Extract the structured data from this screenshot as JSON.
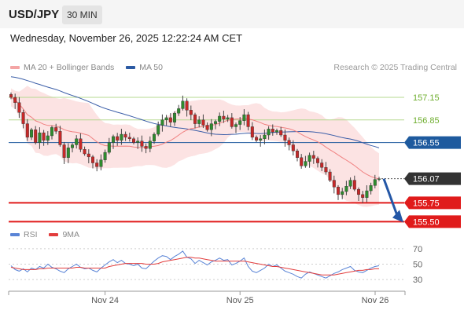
{
  "header": {
    "symbol": "USD/JPY",
    "interval": "30 MIN"
  },
  "datetime": "Wednesday, November 26, 2025 12:22:24 AM CET",
  "legend": {
    "ma20_label": "MA 20 + Bollinger Bands",
    "ma50_label": "MA 50"
  },
  "copyright": "Research © 2025 Trading Central",
  "rsi_legend": {
    "rsi_label": "RSI",
    "ma_label": "9MA"
  },
  "colors": {
    "candle_up": "#2e8b2e",
    "candle_down": "#c62828",
    "bollinger": "#fbdcdc",
    "ma20": "#f08080",
    "ma50": "#3b5ea8",
    "resistance": "#b5d88f",
    "pivot": "#1e5a9e",
    "support": "#e01b1b",
    "last_price": "#333333",
    "rsi": "#5a84d6",
    "rsi_ma": "#e23d3d"
  },
  "chart_data": [
    {
      "type": "candlestick",
      "title": "USD/JPY",
      "ylim": [
        155.4,
        157.4
      ],
      "x_ticks": [
        "Nov 24",
        "Nov 25",
        "Nov 26"
      ],
      "series": [
        {
          "name": "MA 20 + Bollinger Bands"
        },
        {
          "name": "MA 50"
        }
      ],
      "levels": [
        {
          "value": 157.15,
          "label": "157.15",
          "kind": "resistance"
        },
        {
          "value": 156.85,
          "label": "156.85",
          "kind": "resistance"
        },
        {
          "value": 156.55,
          "label": "156.55",
          "kind": "pivot"
        },
        {
          "value": 156.07,
          "label": "156.07",
          "kind": "last"
        },
        {
          "value": 155.75,
          "label": "155.75",
          "kind": "support"
        },
        {
          "value": 155.5,
          "label": "155.50",
          "kind": "support"
        }
      ],
      "forecast_arrow": {
        "from": 156.07,
        "to": 155.5,
        "direction": "down"
      },
      "close": [
        157.15,
        157.08,
        156.95,
        156.8,
        156.62,
        156.72,
        156.55,
        156.68,
        156.58,
        156.64,
        156.75,
        156.7,
        156.52,
        156.35,
        156.48,
        156.52,
        156.6,
        156.46,
        156.4,
        156.36,
        156.28,
        156.23,
        156.32,
        156.42,
        156.55,
        156.63,
        156.58,
        156.66,
        156.62,
        156.6,
        156.55,
        156.57,
        156.5,
        156.47,
        156.57,
        156.66,
        156.78,
        156.85,
        156.88,
        156.82,
        156.94,
        157.0,
        157.1,
        156.98,
        156.92,
        156.8,
        156.85,
        156.78,
        156.72,
        156.8,
        156.83,
        156.9,
        156.86,
        156.88,
        156.76,
        156.79,
        156.84,
        156.92,
        156.76,
        156.62,
        156.58,
        156.6,
        156.65,
        156.73,
        156.69,
        156.71,
        156.65,
        156.58,
        156.52,
        156.44,
        156.35,
        156.24,
        156.3,
        156.38,
        156.34,
        156.28,
        156.22,
        156.16,
        156.05,
        155.96,
        155.86,
        155.9,
        155.97,
        156.05,
        155.93,
        155.86,
        155.82,
        155.91,
        155.98,
        156.06,
        156.07
      ]
    },
    {
      "type": "line",
      "title": "RSI",
      "ylim": [
        20,
        75
      ],
      "y_ticks": [
        70,
        50,
        30
      ],
      "series": [
        {
          "name": "RSI",
          "values": [
            48,
            43,
            41,
            44,
            40,
            45,
            43,
            47,
            45,
            50,
            46,
            44,
            41,
            39,
            44,
            47,
            50,
            46,
            44,
            45,
            42,
            40,
            45,
            49,
            53,
            56,
            52,
            55,
            51,
            50,
            48,
            50,
            45,
            44,
            49,
            54,
            58,
            61,
            60,
            56,
            60,
            63,
            67,
            59,
            57,
            51,
            55,
            52,
            49,
            53,
            55,
            58,
            55,
            56,
            49,
            51,
            54,
            58,
            47,
            41,
            39,
            42,
            45,
            50,
            47,
            49,
            45,
            41,
            39,
            37,
            34,
            32,
            37,
            40,
            38,
            36,
            34,
            32,
            35,
            38,
            40,
            43,
            45,
            47,
            42,
            40,
            39,
            42,
            45,
            47,
            48
          ]
        },
        {
          "name": "9MA",
          "values": [
            46,
            45,
            44,
            43,
            43,
            43,
            43,
            44,
            44,
            45,
            45,
            45,
            45,
            45,
            45,
            45,
            46,
            46,
            45,
            45,
            45,
            45,
            45,
            45,
            47,
            48,
            49,
            50,
            51,
            51,
            51,
            51,
            51,
            50,
            50,
            50,
            51,
            53,
            54,
            55,
            56,
            57,
            58,
            59,
            59,
            58,
            58,
            57,
            56,
            55,
            54,
            54,
            54,
            54,
            54,
            54,
            54,
            54,
            53,
            52,
            51,
            50,
            49,
            48,
            47,
            47,
            46,
            45,
            44,
            43,
            42,
            41,
            40,
            39,
            38,
            37,
            36,
            36,
            36,
            36,
            37,
            38,
            39,
            40,
            41,
            42,
            42,
            43,
            43,
            44,
            44
          ]
        }
      ]
    }
  ]
}
